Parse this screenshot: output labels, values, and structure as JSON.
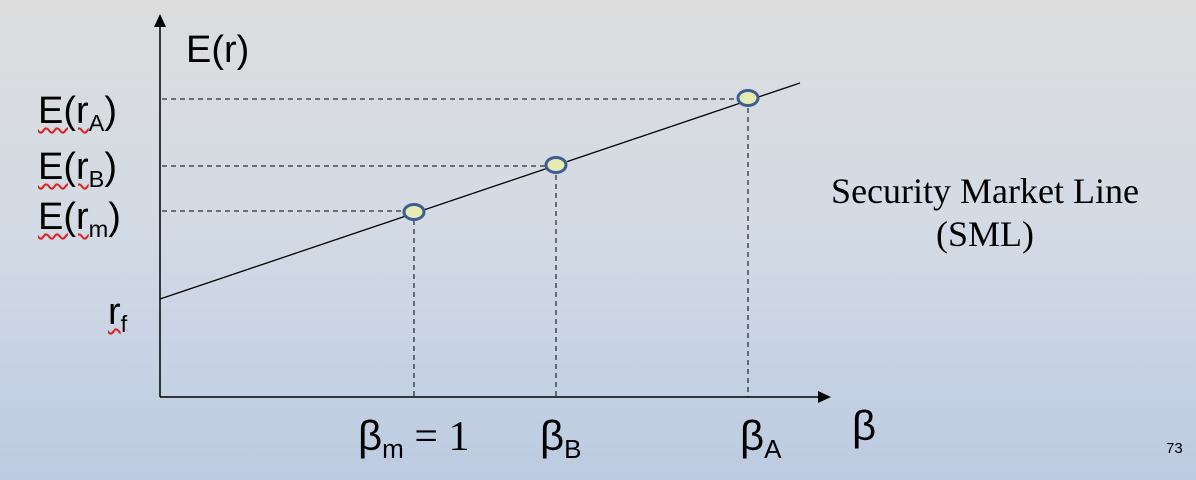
{
  "y_axis": {
    "label": "E(r)"
  },
  "x_axis": {
    "label": "β"
  },
  "y_ticks": {
    "ra": {
      "base": "E(r",
      "sub": "A",
      "close": ")"
    },
    "rb": {
      "base": "E(r",
      "sub": "B",
      "close": ")"
    },
    "rm": {
      "base": "E(r",
      "sub": "m",
      "close": ")"
    },
    "rf": {
      "base": "r",
      "sub": "f"
    }
  },
  "x_ticks": {
    "bm": {
      "base": "β",
      "sub": "m",
      "rest": " = 1"
    },
    "bb": {
      "base": "β",
      "sub": "B"
    },
    "ba": {
      "base": "β",
      "sub": "A"
    }
  },
  "annotation": {
    "line1": "Security Market Line",
    "line2": "(SML)"
  },
  "page_number": "73",
  "colors": {
    "marker_fill": "#e6ecb0",
    "marker_stroke": "#3d5d93",
    "line": "#000000",
    "squiggle": "#dd2222"
  }
}
